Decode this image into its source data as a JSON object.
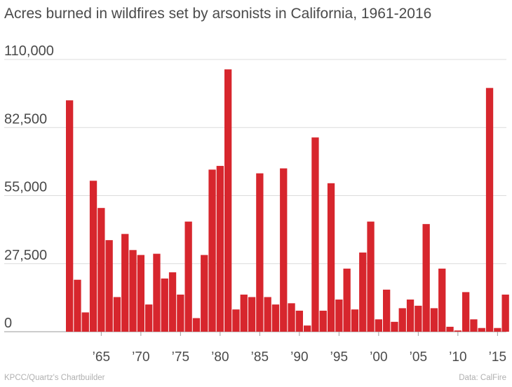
{
  "chart_data": {
    "type": "bar",
    "title": "Acres burned in wildfires set by arsonists in California, 1961-2016",
    "xlabel": "",
    "ylabel": "",
    "ylim": [
      0,
      110000
    ],
    "yticks": [
      0,
      27500,
      55000,
      82500,
      110000
    ],
    "ytick_labels": [
      "0",
      "27,500",
      "55,000",
      "82,500",
      "110,000"
    ],
    "xtick_years": [
      1965,
      1970,
      1975,
      1980,
      1985,
      1990,
      1995,
      2000,
      2005,
      2010,
      2015
    ],
    "xtick_labels": [
      "’65",
      "’70",
      "’75",
      "’80",
      "’85",
      "’90",
      "’95",
      "’00",
      "’05",
      "’10",
      "’15"
    ],
    "color": "#d7262d",
    "grid": true,
    "years": [
      1961,
      1962,
      1963,
      1964,
      1965,
      1966,
      1967,
      1968,
      1969,
      1970,
      1971,
      1972,
      1973,
      1974,
      1975,
      1976,
      1977,
      1978,
      1979,
      1980,
      1981,
      1982,
      1983,
      1984,
      1985,
      1986,
      1987,
      1988,
      1989,
      1990,
      1991,
      1992,
      1993,
      1994,
      1995,
      1996,
      1997,
      1998,
      1999,
      2000,
      2001,
      2002,
      2003,
      2004,
      2005,
      2006,
      2007,
      2008,
      2009,
      2010,
      2011,
      2012,
      2013,
      2014,
      2015,
      2016
    ],
    "values": [
      93500,
      21000,
      7800,
      61000,
      50000,
      37000,
      14000,
      39500,
      33000,
      31000,
      11000,
      31500,
      21500,
      24000,
      15000,
      44500,
      5500,
      31000,
      65500,
      67000,
      106000,
      9000,
      15000,
      14000,
      64000,
      14000,
      11000,
      66000,
      11500,
      8500,
      2500,
      78500,
      8500,
      60000,
      13000,
      25500,
      9000,
      32000,
      44500,
      5000,
      17000,
      4000,
      9500,
      13000,
      10500,
      43500,
      9500,
      25500,
      2000,
      500,
      16000,
      5000,
      1500,
      98500,
      1500,
      15000
    ]
  },
  "source_left": "KPCC/Quartz's Chartbuilder",
  "source_right": "Data: CalFire"
}
